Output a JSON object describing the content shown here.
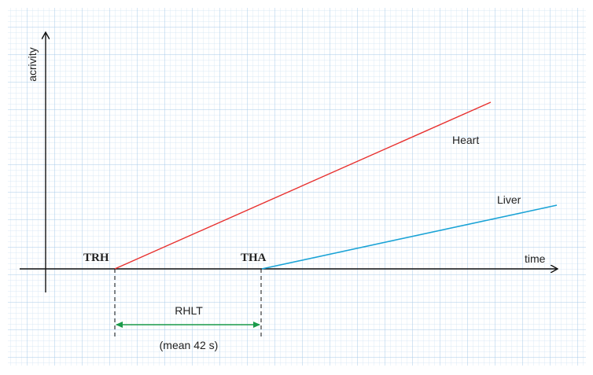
{
  "axes": {
    "y_label": "acrivity",
    "x_label": "time"
  },
  "lines": [
    {
      "label": "Heart"
    },
    {
      "label": "Liver"
    }
  ],
  "points": [
    {
      "label": "TRH"
    },
    {
      "label": "THA"
    }
  ],
  "interval": {
    "label": "RHLT",
    "note": "(mean 42 s)"
  }
}
